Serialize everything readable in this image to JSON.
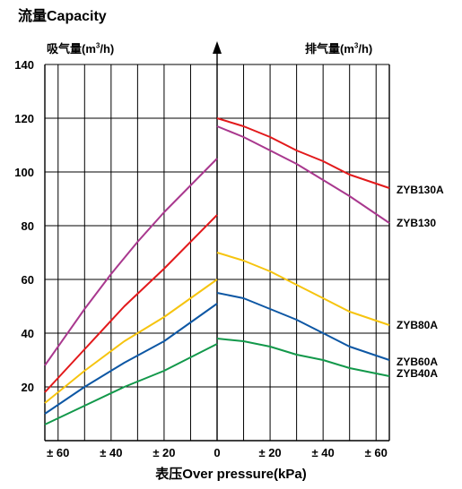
{
  "chart_data": {
    "type": "line",
    "title": "流量Capacity",
    "ylabel_left_prefix": "吸气量(m",
    "ylabel_right_prefix": "排气量(m",
    "ylabel_unit_exp": "3",
    "ylabel_suffix": "/h)",
    "xlabel": "表压Over pressure(kPa)",
    "x_tick_labels": [
      "± 60",
      "± 40",
      "± 20",
      "0",
      "± 20",
      "± 40",
      "± 60"
    ],
    "y_tick_labels": [
      "20",
      "40",
      "60",
      "80",
      "100",
      "120",
      "140"
    ],
    "xlim": [
      -65,
      65
    ],
    "ylim": [
      0,
      140
    ],
    "grid": true,
    "series": [
      {
        "name": "ZYB130A",
        "color": "#e2191b",
        "suction": [
          [
            -65,
            18
          ],
          [
            -50,
            34
          ],
          [
            -35,
            50
          ],
          [
            -20,
            64
          ],
          [
            0,
            84
          ]
        ],
        "discharge": [
          [
            0,
            120
          ],
          [
            10,
            117
          ],
          [
            20,
            113
          ],
          [
            30,
            108
          ],
          [
            40,
            104
          ],
          [
            50,
            99
          ],
          [
            65,
            94
          ]
        ]
      },
      {
        "name": "ZYB130",
        "color": "#a9388e",
        "suction": [
          [
            -65,
            28
          ],
          [
            -50,
            49
          ],
          [
            -40,
            62
          ],
          [
            -30,
            74
          ],
          [
            -20,
            85
          ],
          [
            0,
            105
          ]
        ],
        "discharge": [
          [
            0,
            117
          ],
          [
            10,
            113
          ],
          [
            20,
            108
          ],
          [
            30,
            103
          ],
          [
            40,
            97
          ],
          [
            50,
            91
          ],
          [
            65,
            81
          ]
        ]
      },
      {
        "name": "ZYB80A",
        "color": "#f6c40f",
        "suction": [
          [
            -65,
            14
          ],
          [
            -50,
            26
          ],
          [
            -35,
            37
          ],
          [
            -20,
            46
          ],
          [
            0,
            60
          ]
        ],
        "discharge": [
          [
            0,
            70
          ],
          [
            10,
            67
          ],
          [
            20,
            63
          ],
          [
            30,
            58
          ],
          [
            40,
            53
          ],
          [
            50,
            48
          ],
          [
            65,
            43
          ]
        ]
      },
      {
        "name": "ZYB60A",
        "color": "#0d57a4",
        "suction": [
          [
            -65,
            10
          ],
          [
            -50,
            20
          ],
          [
            -35,
            29
          ],
          [
            -20,
            37
          ],
          [
            0,
            51
          ]
        ],
        "discharge": [
          [
            0,
            55
          ],
          [
            10,
            53
          ],
          [
            20,
            49
          ],
          [
            30,
            45
          ],
          [
            40,
            40
          ],
          [
            50,
            35
          ],
          [
            65,
            30
          ]
        ]
      },
      {
        "name": "ZYB40A",
        "color": "#12984a",
        "suction": [
          [
            -65,
            6
          ],
          [
            -50,
            13
          ],
          [
            -35,
            20
          ],
          [
            -20,
            26
          ],
          [
            0,
            36
          ]
        ],
        "discharge": [
          [
            0,
            38
          ],
          [
            10,
            37
          ],
          [
            20,
            35
          ],
          [
            30,
            32
          ],
          [
            40,
            30
          ],
          [
            50,
            27
          ],
          [
            65,
            24
          ]
        ]
      }
    ],
    "legend_placement": "right, at line ends"
  }
}
